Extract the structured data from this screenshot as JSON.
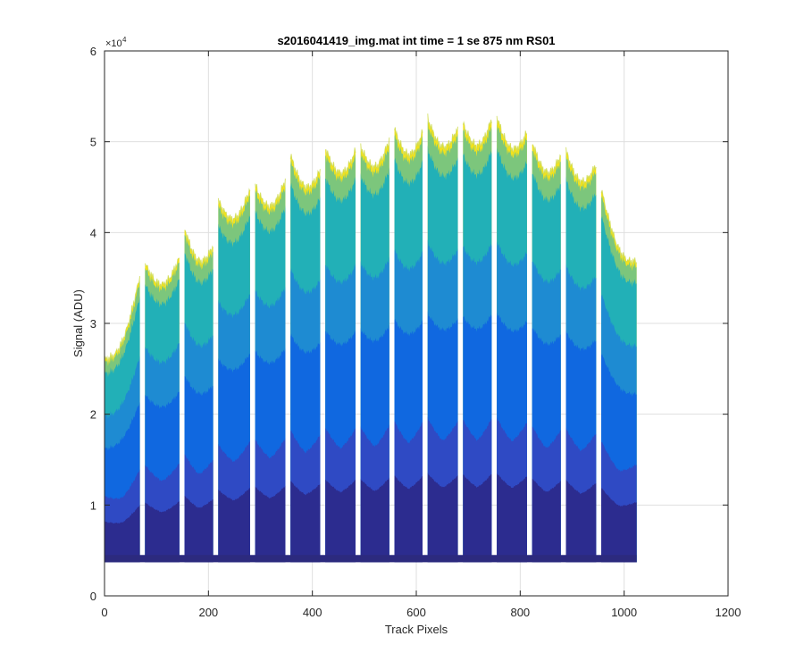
{
  "chart_data": {
    "type": "area",
    "title": "s2016041419_img.mat int time = 1 se  875 nm RS01",
    "xlabel": "Track Pixels",
    "ylabel": "Signal (ADU)",
    "xlim": [
      0,
      1200
    ],
    "ylim": [
      0,
      60000
    ],
    "x_ticks": [
      0,
      200,
      400,
      600,
      800,
      1000,
      1200
    ],
    "x_tick_labels": [
      "0",
      "200",
      "400",
      "600",
      "800",
      "1000",
      "1200"
    ],
    "y_ticks": [
      0,
      10000,
      20000,
      30000,
      40000,
      50000,
      60000
    ],
    "y_tick_labels": [
      "0",
      "1",
      "2",
      "3",
      "4",
      "5",
      "6"
    ],
    "y_exponent_base": "×10",
    "y_exponent_power": "4",
    "grid": true,
    "baseline": 3700,
    "x_max": 1024,
    "tracks": [
      {
        "x_start": 0,
        "x_end": 68,
        "peak_left": 26000,
        "peak_right": 35200
      },
      {
        "x_start": 78,
        "x_end": 144,
        "peak_left": 36600,
        "peak_right": 37200
      },
      {
        "x_start": 154,
        "x_end": 209,
        "peak_left": 40500,
        "peak_right": 38500
      },
      {
        "x_start": 219,
        "x_end": 280,
        "peak_left": 43500,
        "peak_right": 44800
      },
      {
        "x_start": 290,
        "x_end": 348,
        "peak_left": 45200,
        "peak_right": 45800
      },
      {
        "x_start": 358,
        "x_end": 415,
        "peak_left": 48500,
        "peak_right": 46800
      },
      {
        "x_start": 425,
        "x_end": 483,
        "peak_left": 49300,
        "peak_right": 49000
      },
      {
        "x_start": 493,
        "x_end": 548,
        "peak_left": 49500,
        "peak_right": 50200
      },
      {
        "x_start": 558,
        "x_end": 612,
        "peak_left": 51400,
        "peak_right": 51000
      },
      {
        "x_start": 622,
        "x_end": 680,
        "peak_left": 52600,
        "peak_right": 51500
      },
      {
        "x_start": 690,
        "x_end": 745,
        "peak_left": 52000,
        "peak_right": 52400
      },
      {
        "x_start": 755,
        "x_end": 813,
        "peak_left": 52700,
        "peak_right": 51000
      },
      {
        "x_start": 823,
        "x_end": 878,
        "peak_left": 50000,
        "peak_right": 48500
      },
      {
        "x_start": 888,
        "x_end": 946,
        "peak_left": 49000,
        "peak_right": 47500
      },
      {
        "x_start": 956,
        "x_end": 1024,
        "peak_left": 44800,
        "peak_right": 36800
      }
    ],
    "band_colors": [
      "#2c2c8f",
      "#2f4ac4",
      "#1068e0",
      "#1e8bd2",
      "#22b0b7",
      "#7cc67c",
      "#f3e21c"
    ]
  }
}
